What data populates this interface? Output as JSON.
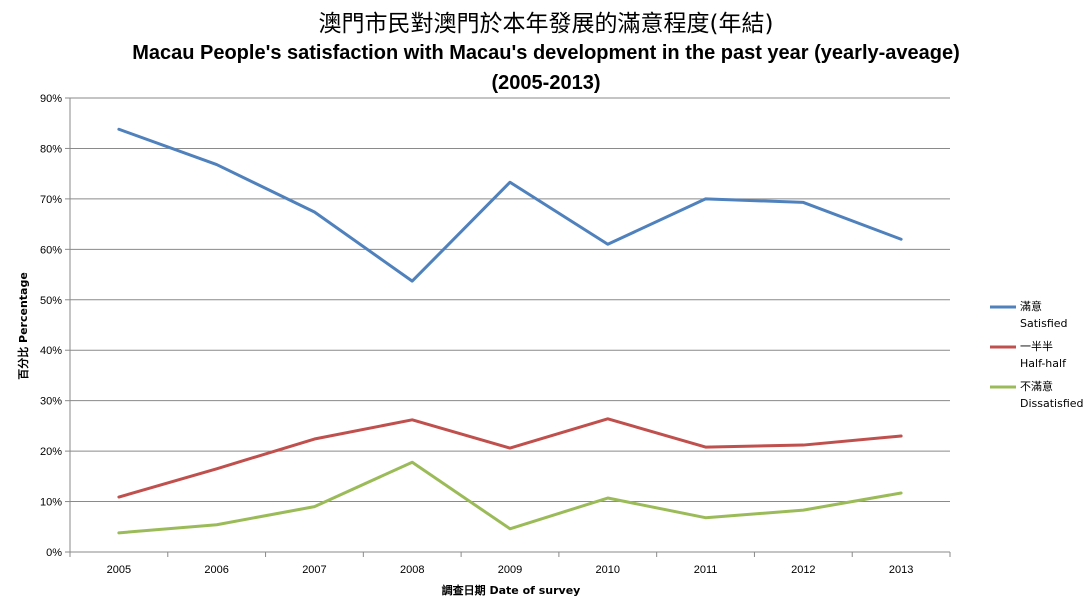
{
  "chart_data": {
    "type": "line",
    "title": "澳門市民對澳門於本年發展的滿意程度(年結)",
    "subtitle": "Macau People's satisfaction with Macau's development in the past year (yearly-aveage)",
    "subtitle2": "(2005-2013)",
    "xlabel": "調查日期 Date of survey",
    "ylabel": "百分比 Percentage",
    "ylim": [
      0,
      90
    ],
    "yticks": [
      "0%",
      "10%",
      "20%",
      "30%",
      "40%",
      "50%",
      "60%",
      "70%",
      "80%",
      "90%"
    ],
    "categories": [
      "2005",
      "2006",
      "2007",
      "2008",
      "2009",
      "2010",
      "2011",
      "2012",
      "2013"
    ],
    "grid": true,
    "legend_position": "right",
    "series": [
      {
        "name_zh": "滿意",
        "name_en": "Satisfied",
        "color": "#4F81BD",
        "values": [
          83.8,
          76.8,
          67.4,
          53.7,
          73.3,
          61.0,
          70.0,
          69.3,
          62.0
        ]
      },
      {
        "name_zh": "一半半",
        "name_en": "Half-half",
        "color": "#C0504D",
        "values": [
          10.9,
          16.5,
          22.4,
          26.2,
          20.6,
          26.4,
          20.8,
          21.2,
          23.0
        ]
      },
      {
        "name_zh": "不滿意",
        "name_en": "Dissatisfied",
        "color": "#9BBB59",
        "values": [
          3.8,
          5.4,
          9.0,
          17.8,
          4.6,
          10.7,
          6.8,
          8.3,
          11.7
        ]
      }
    ]
  }
}
